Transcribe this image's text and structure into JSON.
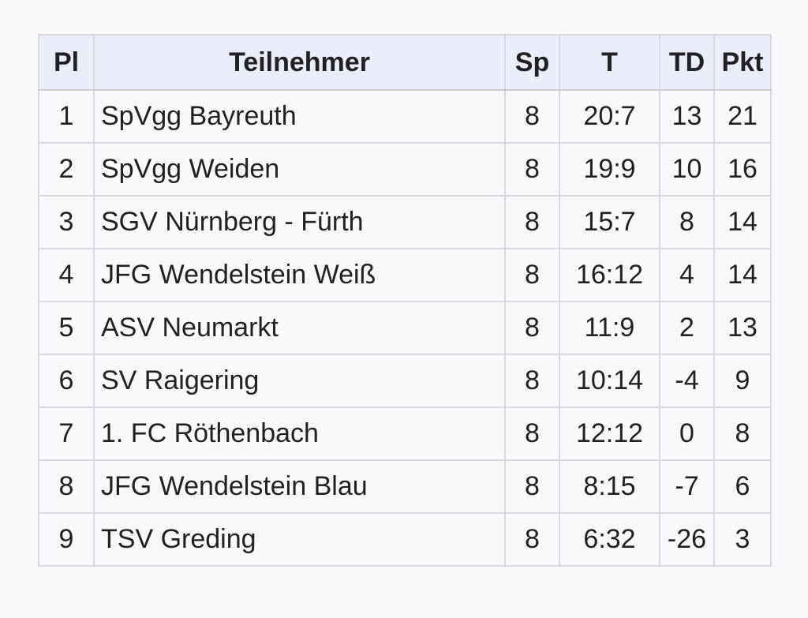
{
  "table": {
    "headers": {
      "pl": "Pl",
      "team": "Teilnehmer",
      "sp": "Sp",
      "t": "T",
      "td": "TD",
      "pkt": "Pkt"
    },
    "rows": [
      {
        "pl": "1",
        "team": "SpVgg Bayreuth",
        "sp": "8",
        "t": "20:7",
        "td": "13",
        "pkt": "21"
      },
      {
        "pl": "2",
        "team": "SpVgg Weiden",
        "sp": "8",
        "t": "19:9",
        "td": "10",
        "pkt": "16"
      },
      {
        "pl": "3",
        "team": "SGV Nürnberg - Fürth",
        "sp": "8",
        "t": "15:7",
        "td": "8",
        "pkt": "14"
      },
      {
        "pl": "4",
        "team": "JFG Wendelstein Weiß",
        "sp": "8",
        "t": "16:12",
        "td": "4",
        "pkt": "14"
      },
      {
        "pl": "5",
        "team": "ASV Neumarkt",
        "sp": "8",
        "t": "11:9",
        "td": "2",
        "pkt": "13"
      },
      {
        "pl": "6",
        "team": "SV Raigering",
        "sp": "8",
        "t": "10:14",
        "td": "-4",
        "pkt": "9"
      },
      {
        "pl": "7",
        "team": "1. FC Röthenbach",
        "sp": "8",
        "t": "12:12",
        "td": "0",
        "pkt": "8"
      },
      {
        "pl": "8",
        "team": "JFG Wendelstein Blau",
        "sp": "8",
        "t": "8:15",
        "td": "-7",
        "pkt": "6"
      },
      {
        "pl": "9",
        "team": "TSV Greding",
        "sp": "8",
        "t": "6:32",
        "td": "-26",
        "pkt": "3"
      }
    ]
  }
}
